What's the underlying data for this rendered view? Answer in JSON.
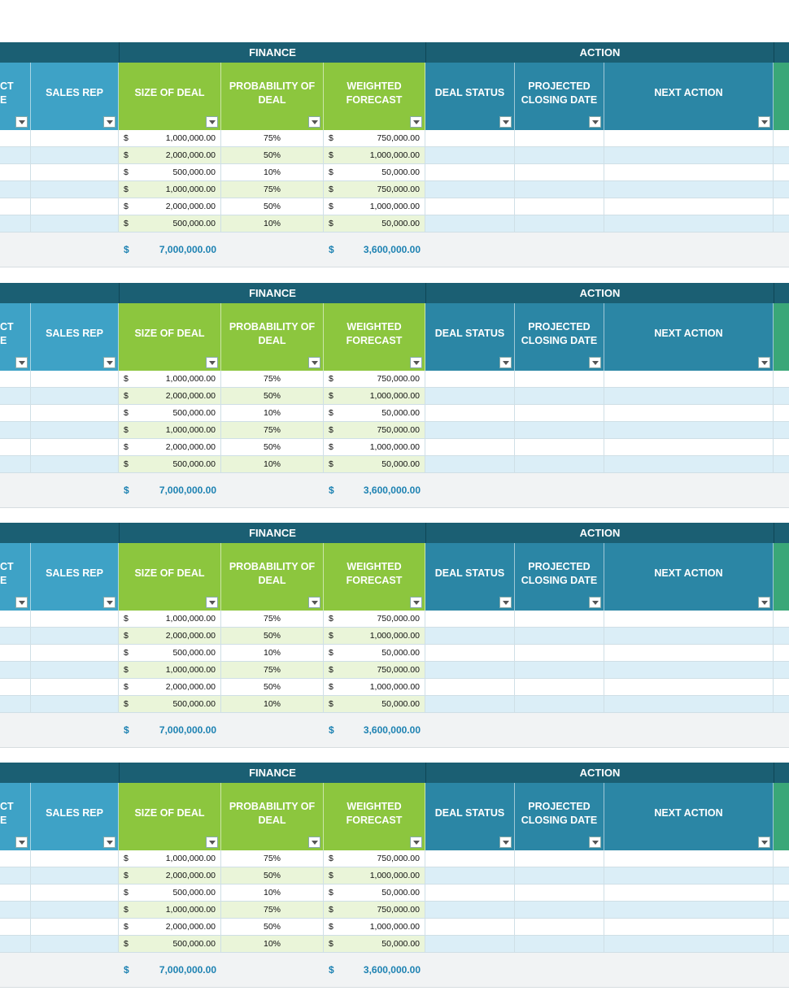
{
  "groups": {
    "finance": "FINANCE",
    "action": "ACTION"
  },
  "columns": {
    "project": [
      "CT",
      "E"
    ],
    "sales_rep": "SALES REP",
    "size_of_deal": "SIZE OF DEAL",
    "probability": [
      "PROBABILITY OF",
      "DEAL"
    ],
    "weighted": [
      "WEIGHTED",
      "FORECAST"
    ],
    "deal_status": "DEAL STATUS",
    "closing": [
      "PROJECTED",
      "CLOSING DATE"
    ],
    "next_action": "NEXT ACTION"
  },
  "currency": "$",
  "rows": [
    {
      "size": "1,000,000.00",
      "prob": "75%",
      "weighted": "750,000.00"
    },
    {
      "size": "2,000,000.00",
      "prob": "50%",
      "weighted": "1,000,000.00"
    },
    {
      "size": "500,000.00",
      "prob": "10%",
      "weighted": "50,000.00"
    },
    {
      "size": "1,000,000.00",
      "prob": "75%",
      "weighted": "750,000.00"
    },
    {
      "size": "2,000,000.00",
      "prob": "50%",
      "weighted": "1,000,000.00"
    },
    {
      "size": "500,000.00",
      "prob": "10%",
      "weighted": "50,000.00"
    }
  ],
  "totals": {
    "size": "7,000,000.00",
    "weighted": "3,600,000.00"
  },
  "block_count": 4,
  "colors": {
    "group_header": "#1b5f73",
    "header_light_blue": "#3ea2c6",
    "header_green": "#8cc63e",
    "header_teal": "#2b86a5",
    "header_edge_green": "#3aa778",
    "total_text": "#1d82b2"
  },
  "icons": {
    "filter": "dropdown-arrow-icon"
  }
}
